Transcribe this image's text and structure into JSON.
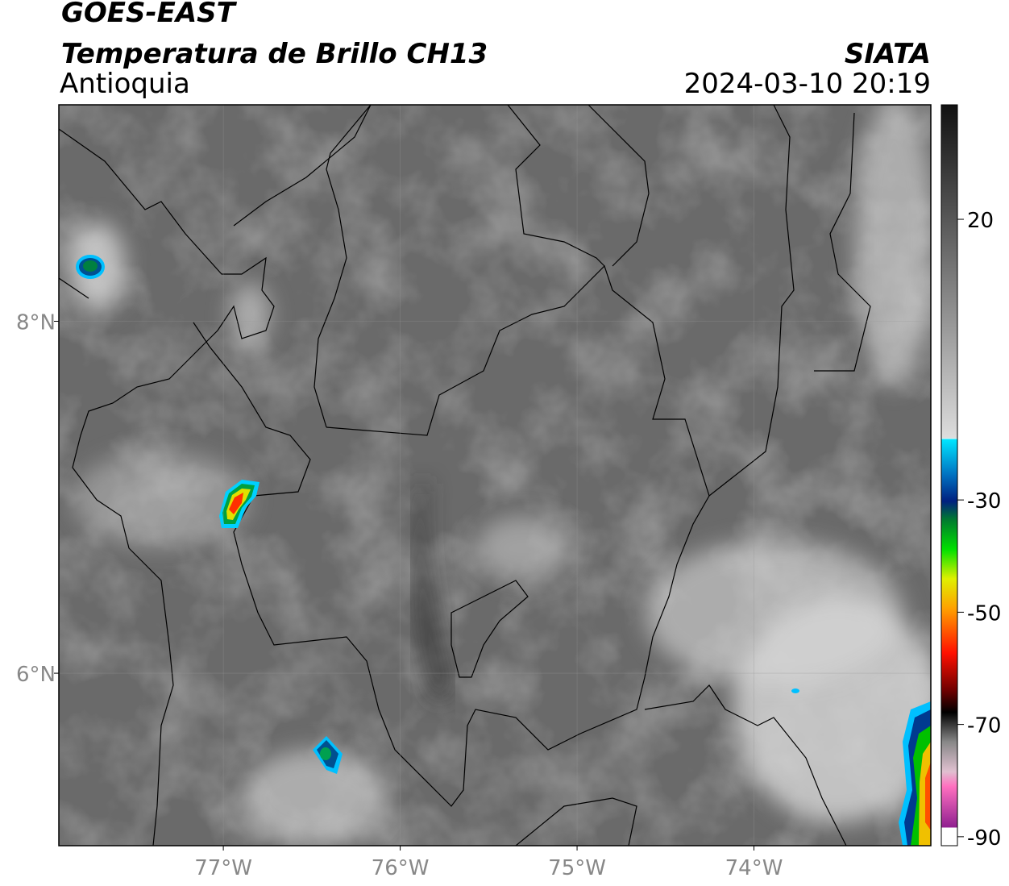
{
  "header": {
    "satellite": "GOES-EAST",
    "product": "Temperatura de Brillo CH13",
    "region": "Antioquia",
    "source": "SIATA",
    "datetime": "2024-03-10 20:19"
  },
  "map": {
    "xlim": [
      -77.93,
      -73.0
    ],
    "ylim": [
      5.02,
      9.23
    ],
    "xticks": [
      {
        "value": -77,
        "label": "77°W"
      },
      {
        "value": -76,
        "label": "76°W"
      },
      {
        "value": -75,
        "label": "75°W"
      },
      {
        "value": -74,
        "label": "74°W"
      }
    ],
    "yticks": [
      {
        "value": 8,
        "label": "8°N"
      },
      {
        "value": 6,
        "label": "6°N"
      }
    ]
  },
  "colorbar": {
    "lim": [
      -91.6,
      40.4
    ],
    "ticks": [
      20,
      -30,
      -50,
      -70,
      -90
    ]
  }
}
